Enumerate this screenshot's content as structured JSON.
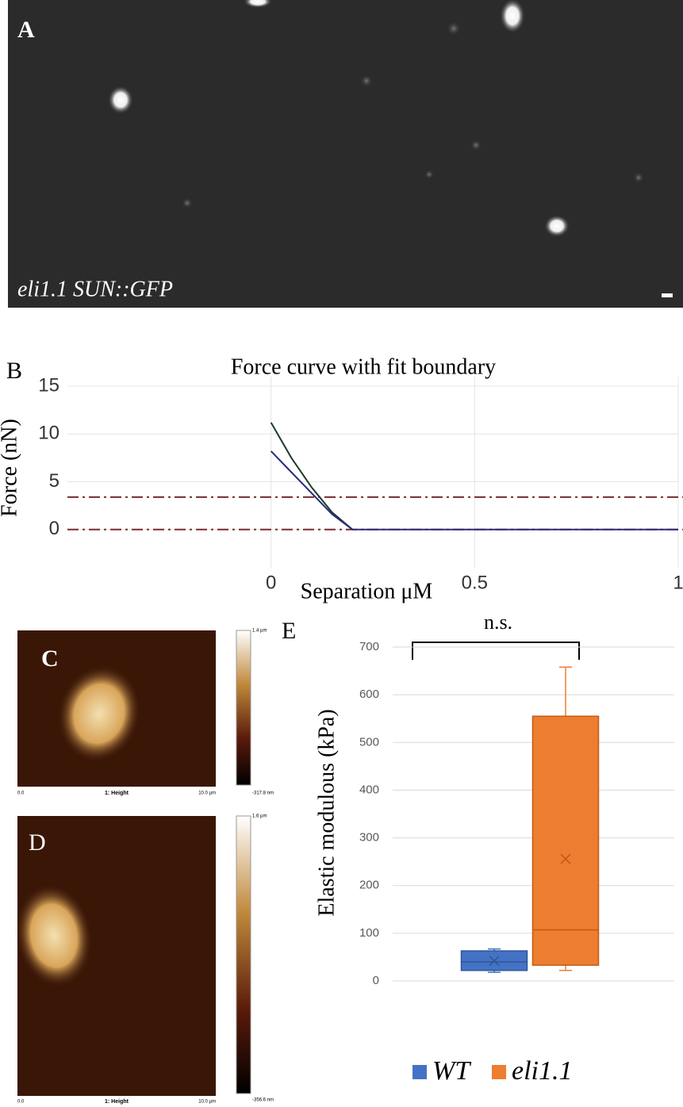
{
  "panels": {
    "A": {
      "label": "A",
      "caption": "eli1.1 SUN::GFP"
    },
    "C": {
      "label": "C",
      "scale_top": "1.4 µm",
      "scale_bottom": "-317.8 nm",
      "axis_start": "0.0",
      "channel": "1: Height",
      "axis_end": "10.0 µm"
    },
    "D": {
      "label": "D",
      "scale_top": "1.6 µm",
      "scale_bottom": "-356.6 nm",
      "axis_start": "0.0",
      "channel": "1: Height",
      "axis_end": "10.0 µm"
    }
  },
  "chart_data": [
    {
      "type": "line",
      "panel_label": "B",
      "title": "Force curve with fit boundary",
      "xlabel": "Separation μM",
      "ylabel": "Force (nN)",
      "x": [
        0,
        0.05,
        0.1,
        0.15,
        0.2,
        0.4,
        0.6,
        0.8,
        1.0
      ],
      "series": [
        {
          "color": "#1f3a2a",
          "values": [
            11.2,
            7.5,
            4.4,
            1.8,
            0,
            null,
            null,
            null,
            null
          ]
        },
        {
          "color": "#2a2a7a",
          "values": [
            8.2,
            6.0,
            3.8,
            1.6,
            0,
            0,
            0,
            0,
            0
          ]
        }
      ],
      "boundaries": [
        3.4,
        0
      ],
      "boundary_color": "#7a2a2a",
      "xlim": [
        -0.5,
        1.0
      ],
      "ylim": [
        -4,
        16
      ],
      "xticks": [
        0,
        0.5,
        1
      ],
      "yticks": [
        0,
        5,
        10,
        15
      ],
      "grid": true
    },
    {
      "type": "box",
      "panel_label": "E",
      "ylabel": "Elastic modulous (kPa)",
      "annotation": "n.s.",
      "series": [
        {
          "name": "WT",
          "color": "#4472c4",
          "min": 18,
          "q1": 22,
          "median": 40,
          "q3": 63,
          "max": 67,
          "mean": 42
        },
        {
          "name": "eli1.1",
          "color": "#ed7d31",
          "min": 22,
          "q1": 33,
          "median": 107,
          "q3": 555,
          "max": 658,
          "mean": 256
        }
      ],
      "ylim": [
        0,
        700
      ],
      "yticks": [
        0,
        100,
        200,
        300,
        400,
        500,
        600,
        700
      ],
      "grid": true,
      "legend": "bottom"
    }
  ]
}
